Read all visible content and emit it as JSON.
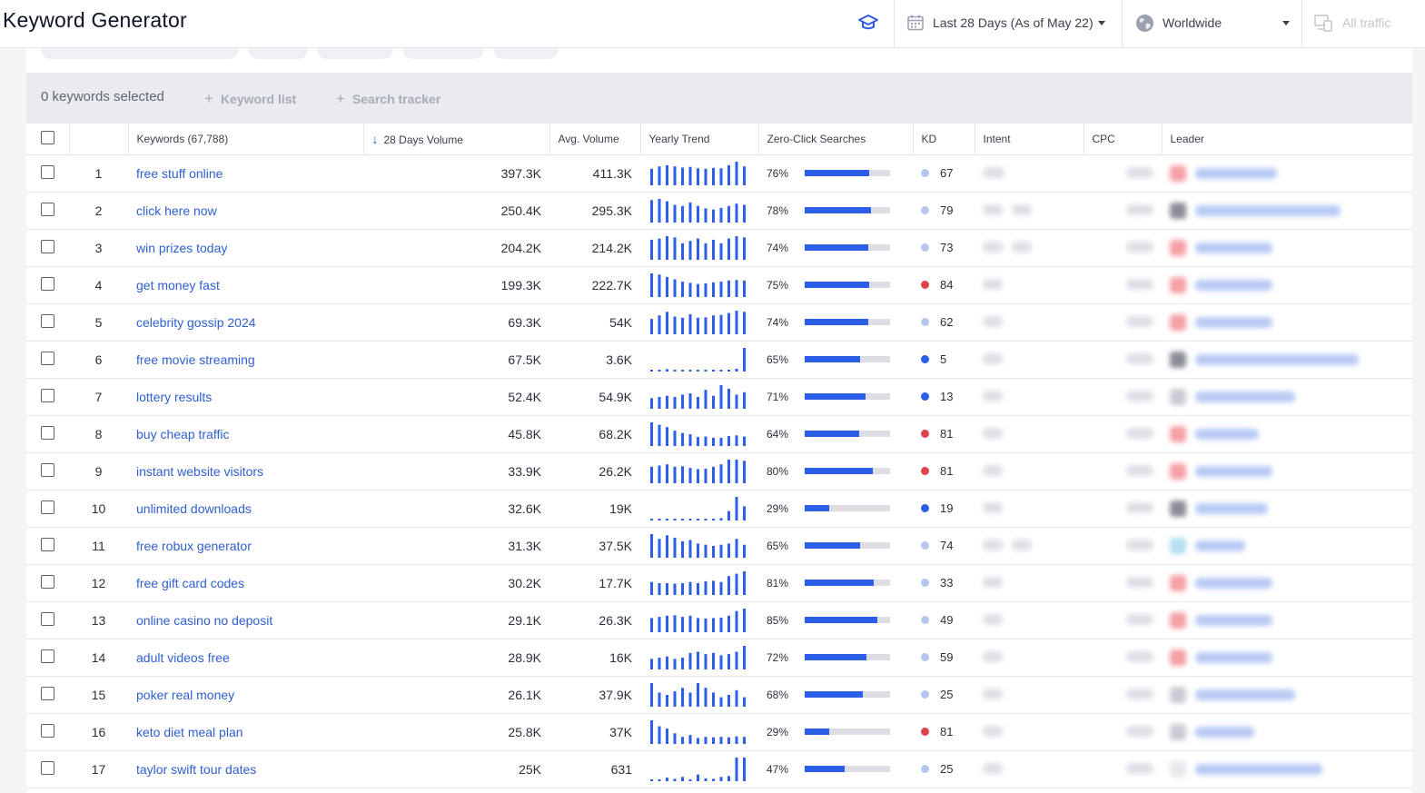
{
  "header": {
    "title": "Keyword Generator",
    "date_range": "Last 28 Days (As of May 22)",
    "location": "Worldwide",
    "traffic": "All traffic"
  },
  "selection": {
    "count_label": "0 keywords selected",
    "keyword_list": "Keyword list",
    "search_tracker": "Search tracker"
  },
  "columns": {
    "keywords": "Keywords (67,788)",
    "volume28": "28 Days Volume",
    "avg_volume": "Avg. Volume",
    "yearly_trend": "Yearly Trend",
    "zero_click": "Zero-Click Searches",
    "kd": "KD",
    "intent": "Intent",
    "cpc": "CPC",
    "leader": "Leader"
  },
  "colors": {
    "accent": "#2d5ee8",
    "kd_low": "#2d5ee8",
    "kd_mid": "#b7c6ee",
    "kd_high": "#e0454f"
  },
  "rows": [
    {
      "n": "1",
      "keyword": "free stuff online",
      "vol28": "397.3K",
      "avg": "411.3K",
      "zero": "76%",
      "zero_frac": 0.76,
      "kd": "67",
      "kd_level": "mid",
      "trend": [
        0.7,
        0.8,
        0.85,
        0.8,
        0.75,
        0.78,
        0.72,
        0.7,
        0.74,
        0.72,
        0.85,
        1.0,
        0.8
      ]
    },
    {
      "n": "2",
      "keyword": "click here now",
      "vol28": "250.4K",
      "avg": "295.3K",
      "zero": "78%",
      "zero_frac": 0.78,
      "kd": "79",
      "kd_level": "mid",
      "trend": [
        0.95,
        1.0,
        0.9,
        0.75,
        0.7,
        0.85,
        0.7,
        0.6,
        0.55,
        0.62,
        0.7,
        0.8,
        0.75
      ]
    },
    {
      "n": "3",
      "keyword": "win prizes today",
      "vol28": "204.2K",
      "avg": "214.2K",
      "zero": "74%",
      "zero_frac": 0.74,
      "kd": "73",
      "kd_level": "mid",
      "trend": [
        0.85,
        0.9,
        1.0,
        0.95,
        0.7,
        0.8,
        0.9,
        0.7,
        0.85,
        0.7,
        0.9,
        1.0,
        0.95
      ]
    },
    {
      "n": "4",
      "keyword": "get money fast",
      "vol28": "199.3K",
      "avg": "222.7K",
      "zero": "75%",
      "zero_frac": 0.75,
      "kd": "84",
      "kd_level": "high",
      "trend": [
        1.0,
        0.95,
        0.85,
        0.75,
        0.65,
        0.6,
        0.55,
        0.58,
        0.62,
        0.65,
        0.7,
        0.72,
        0.7
      ]
    },
    {
      "n": "5",
      "keyword": "celebrity gossip 2024",
      "vol28": "69.3K",
      "avg": "54K",
      "zero": "74%",
      "zero_frac": 0.74,
      "kd": "62",
      "kd_level": "mid",
      "trend": [
        0.65,
        0.8,
        0.95,
        0.75,
        0.7,
        0.85,
        0.7,
        0.72,
        0.8,
        0.82,
        0.9,
        1.0,
        0.95
      ]
    },
    {
      "n": "6",
      "keyword": "free movie streaming",
      "vol28": "67.5K",
      "avg": "3.6K",
      "zero": "65%",
      "zero_frac": 0.65,
      "kd": "5",
      "kd_level": "low",
      "trend": [
        0.04,
        0.04,
        0.1,
        0.04,
        0.05,
        0.04,
        0.06,
        0.04,
        0.04,
        0.05,
        0.05,
        0.12,
        1.0
      ]
    },
    {
      "n": "7",
      "keyword": "lottery results",
      "vol28": "52.4K",
      "avg": "54.9K",
      "zero": "71%",
      "zero_frac": 0.71,
      "kd": "13",
      "kd_level": "low",
      "trend": [
        0.45,
        0.5,
        0.55,
        0.5,
        0.6,
        0.65,
        0.5,
        0.8,
        0.55,
        1.0,
        0.85,
        0.6,
        0.7
      ]
    },
    {
      "n": "8",
      "keyword": "buy cheap traffic",
      "vol28": "45.8K",
      "avg": "68.2K",
      "zero": "64%",
      "zero_frac": 0.64,
      "kd": "81",
      "kd_level": "high",
      "trend": [
        1.0,
        0.9,
        0.8,
        0.65,
        0.55,
        0.5,
        0.38,
        0.4,
        0.35,
        0.35,
        0.42,
        0.45,
        0.4
      ]
    },
    {
      "n": "9",
      "keyword": "instant website visitors",
      "vol28": "33.9K",
      "avg": "26.2K",
      "zero": "80%",
      "zero_frac": 0.8,
      "kd": "81",
      "kd_level": "high",
      "trend": [
        0.7,
        0.75,
        0.8,
        0.7,
        0.72,
        0.65,
        0.6,
        0.62,
        0.7,
        0.8,
        1.0,
        1.0,
        0.95
      ]
    },
    {
      "n": "10",
      "keyword": "unlimited downloads",
      "vol28": "32.6K",
      "avg": "19K",
      "zero": "29%",
      "zero_frac": 0.29,
      "kd": "19",
      "kd_level": "low",
      "trend": [
        0.05,
        0.06,
        0.05,
        0.06,
        0.05,
        0.05,
        0.06,
        0.06,
        0.07,
        0.1,
        0.4,
        1.0,
        0.6
      ]
    },
    {
      "n": "11",
      "keyword": "free robux generator",
      "vol28": "31.3K",
      "avg": "37.5K",
      "zero": "65%",
      "zero_frac": 0.65,
      "kd": "74",
      "kd_level": "mid",
      "trend": [
        1.0,
        0.8,
        0.95,
        0.85,
        0.7,
        0.75,
        0.6,
        0.55,
        0.5,
        0.55,
        0.6,
        0.8,
        0.55
      ]
    },
    {
      "n": "12",
      "keyword": "free gift card codes",
      "vol28": "30.2K",
      "avg": "17.7K",
      "zero": "81%",
      "zero_frac": 0.81,
      "kd": "33",
      "kd_level": "mid",
      "trend": [
        0.55,
        0.5,
        0.5,
        0.48,
        0.5,
        0.55,
        0.5,
        0.58,
        0.6,
        0.55,
        0.8,
        0.9,
        1.0
      ]
    },
    {
      "n": "13",
      "keyword": "online casino no deposit",
      "vol28": "29.1K",
      "avg": "26.3K",
      "zero": "85%",
      "zero_frac": 0.85,
      "kd": "49",
      "kd_level": "mid",
      "trend": [
        0.6,
        0.65,
        0.7,
        0.72,
        0.65,
        0.7,
        0.6,
        0.58,
        0.6,
        0.62,
        0.7,
        0.9,
        1.0
      ]
    },
    {
      "n": "14",
      "keyword": "adult videos free",
      "vol28": "28.9K",
      "avg": "16K",
      "zero": "72%",
      "zero_frac": 0.72,
      "kd": "59",
      "kd_level": "mid",
      "trend": [
        0.45,
        0.5,
        0.55,
        0.45,
        0.5,
        0.7,
        0.75,
        0.65,
        0.7,
        0.6,
        0.65,
        0.75,
        1.0
      ]
    },
    {
      "n": "15",
      "keyword": "poker real money",
      "vol28": "26.1K",
      "avg": "37.9K",
      "zero": "68%",
      "zero_frac": 0.68,
      "kd": "25",
      "kd_level": "mid",
      "trend": [
        1.0,
        0.6,
        0.5,
        0.65,
        0.8,
        0.6,
        1.0,
        0.8,
        0.6,
        0.4,
        0.5,
        0.7,
        0.4
      ]
    },
    {
      "n": "16",
      "keyword": "keto diet meal plan",
      "vol28": "25.8K",
      "avg": "37K",
      "zero": "29%",
      "zero_frac": 0.29,
      "kd": "81",
      "kd_level": "high",
      "trend": [
        1.0,
        0.75,
        0.65,
        0.45,
        0.3,
        0.38,
        0.25,
        0.3,
        0.28,
        0.3,
        0.28,
        0.32,
        0.3
      ]
    },
    {
      "n": "17",
      "keyword": "taylor swift tour dates",
      "vol28": "25K",
      "avg": "631",
      "zero": "47%",
      "zero_frac": 0.47,
      "kd": "25",
      "kd_level": "mid",
      "trend": [
        0.06,
        0.08,
        0.15,
        0.1,
        0.18,
        0.08,
        0.28,
        0.12,
        0.1,
        0.18,
        0.22,
        1.0,
        1.0
      ]
    }
  ]
}
